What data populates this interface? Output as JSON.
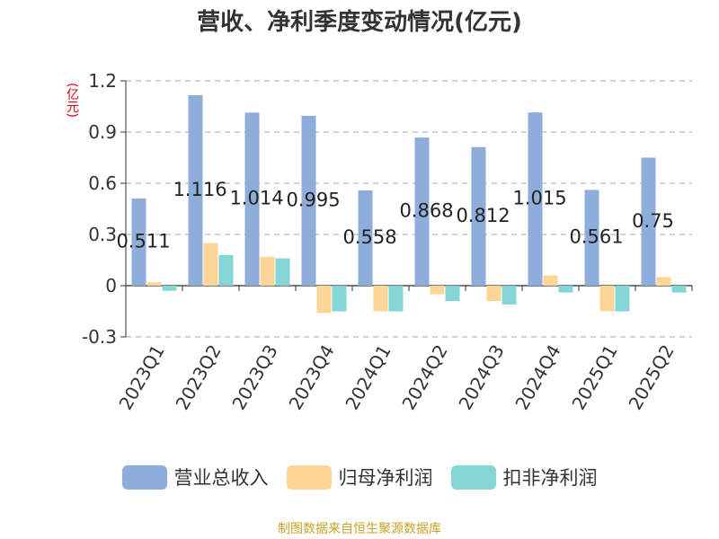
{
  "title": "营收、净利季度变动情况(亿元)",
  "source": "制图数据来自恒生聚源数据库",
  "colors": {
    "revenue": "#8eadda",
    "net_profit": "#fdd594",
    "deducted_net_profit": "#85d6d6",
    "ylabel": "#e00000",
    "source": "#c9a227"
  },
  "chart_data": {
    "type": "bar",
    "title": "营收、净利季度变动情况(亿元)",
    "ylabel": "(亿元)",
    "xlabel": "",
    "ylim": [
      -0.3,
      1.2
    ],
    "yticks": [
      -0.3,
      0,
      0.3,
      0.6,
      0.9,
      1.2
    ],
    "ytick_labels": [
      "-0.3",
      "0",
      "0.3",
      "0.6",
      "0.9",
      "1.2"
    ],
    "grid": true,
    "legend_position": "bottom",
    "categories": [
      "2023Q1",
      "2023Q2",
      "2023Q3",
      "2023Q4",
      "2024Q1",
      "2024Q2",
      "2024Q3",
      "2024Q4",
      "2025Q1",
      "2025Q2"
    ],
    "series": [
      {
        "name": "营业总收入",
        "values": [
          0.511,
          1.116,
          1.014,
          0.995,
          0.558,
          0.868,
          0.812,
          1.015,
          0.561,
          0.75
        ],
        "labels": [
          "0.511",
          "1.116",
          "1.014",
          "0.995",
          "0.558",
          "0.868",
          "0.812",
          "1.015",
          "0.561",
          "0.75"
        ]
      },
      {
        "name": "归母净利润",
        "values": [
          0.02,
          0.25,
          0.17,
          -0.16,
          -0.15,
          -0.05,
          -0.09,
          0.06,
          -0.15,
          0.05
        ]
      },
      {
        "name": "扣非净利润",
        "values": [
          -0.03,
          0.18,
          0.16,
          -0.15,
          -0.15,
          -0.09,
          -0.11,
          -0.04,
          -0.15,
          -0.04
        ]
      }
    ]
  }
}
